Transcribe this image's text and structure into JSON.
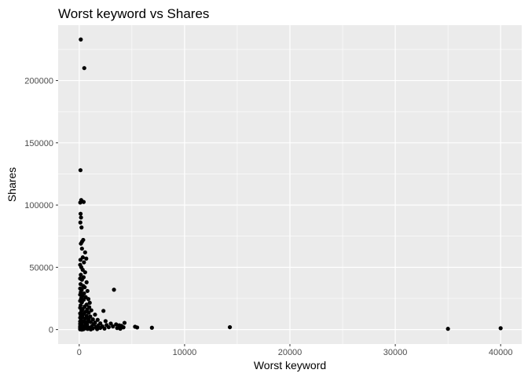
{
  "chart_data": {
    "type": "scatter",
    "title": "Worst keyword vs Shares",
    "xlabel": "Worst keyword",
    "ylabel": "Shares",
    "xlim": [
      -2000,
      42000
    ],
    "ylim": [
      -11600,
      244500
    ],
    "x_ticks": [
      0,
      10000,
      20000,
      30000,
      40000
    ],
    "y_ticks": [
      0,
      50000,
      100000,
      150000,
      200000
    ],
    "x_tick_labels": [
      "0",
      "10000",
      "20000",
      "30000",
      "40000"
    ],
    "y_tick_labels": [
      "0",
      "50000",
      "100000",
      "150000",
      "200000"
    ],
    "grid": true,
    "colors": {
      "panel": "#ebebeb",
      "grid_major": "#ffffff",
      "point": "#000000"
    },
    "points": [
      [
        150,
        233000
      ],
      [
        480,
        210000
      ],
      [
        120,
        128000
      ],
      [
        190,
        104000
      ],
      [
        420,
        102500
      ],
      [
        100,
        102000
      ],
      [
        130,
        93000
      ],
      [
        170,
        90000
      ],
      [
        110,
        86000
      ],
      [
        220,
        82000
      ],
      [
        380,
        72000
      ],
      [
        260,
        70500
      ],
      [
        160,
        69000
      ],
      [
        260,
        65000
      ],
      [
        560,
        62000
      ],
      [
        340,
        58000
      ],
      [
        670,
        57000
      ],
      [
        120,
        56000
      ],
      [
        450,
        54000
      ],
      [
        90,
        52000
      ],
      [
        200,
        50000
      ],
      [
        330,
        48000
      ],
      [
        560,
        46000
      ],
      [
        150,
        44000
      ],
      [
        420,
        42000
      ],
      [
        90,
        41000
      ],
      [
        260,
        40000
      ],
      [
        700,
        38000
      ],
      [
        130,
        36500
      ],
      [
        380,
        35000
      ],
      [
        520,
        34000
      ],
      [
        90,
        33000
      ],
      [
        240,
        32000
      ],
      [
        3300,
        32000
      ],
      [
        780,
        31000
      ],
      [
        150,
        30000
      ],
      [
        460,
        29000
      ],
      [
        90,
        28000
      ],
      [
        300,
        27000
      ],
      [
        620,
        26000
      ],
      [
        180,
        25000
      ],
      [
        870,
        24500
      ],
      [
        430,
        24000
      ],
      [
        90,
        23000
      ],
      [
        260,
        22000
      ],
      [
        1000,
        21500
      ],
      [
        700,
        20000
      ],
      [
        140,
        19500
      ],
      [
        520,
        18500
      ],
      [
        950,
        18000
      ],
      [
        90,
        17500
      ],
      [
        330,
        16500
      ],
      [
        750,
        16000
      ],
      [
        1150,
        15500
      ],
      [
        210,
        15000
      ],
      [
        2300,
        15000
      ],
      [
        560,
        14000
      ],
      [
        900,
        13500
      ],
      [
        90,
        13000
      ],
      [
        400,
        12500
      ],
      [
        1500,
        12000
      ],
      [
        150,
        11500
      ],
      [
        700,
        11000
      ],
      [
        1050,
        10500
      ],
      [
        300,
        10000
      ],
      [
        90,
        9500
      ],
      [
        600,
        9000
      ],
      [
        900,
        8500
      ],
      [
        1300,
        8200
      ],
      [
        1750,
        7800
      ],
      [
        200,
        7500
      ],
      [
        470,
        7000
      ],
      [
        2500,
        6800
      ],
      [
        90,
        6500
      ],
      [
        800,
        6200
      ],
      [
        1100,
        6000
      ],
      [
        320,
        5800
      ],
      [
        1500,
        5600
      ],
      [
        4300,
        5400
      ],
      [
        620,
        5200
      ],
      [
        2000,
        5000
      ],
      [
        3000,
        4800
      ],
      [
        90,
        4600
      ],
      [
        1400,
        4400
      ],
      [
        3500,
        4200
      ],
      [
        250,
        4000
      ],
      [
        760,
        3800
      ],
      [
        2600,
        3600
      ],
      [
        3800,
        3400
      ],
      [
        1800,
        3200
      ],
      [
        4000,
        3000
      ],
      [
        100,
        2900
      ],
      [
        500,
        2800
      ],
      [
        1200,
        2700
      ],
      [
        2200,
        2600
      ],
      [
        3200,
        2500
      ],
      [
        5300,
        2300
      ],
      [
        90,
        2200
      ],
      [
        650,
        2100
      ],
      [
        1600,
        2000
      ],
      [
        2800,
        1900
      ],
      [
        4200,
        1800
      ],
      [
        5500,
        1700
      ],
      [
        6900,
        1500
      ],
      [
        14300,
        1900
      ],
      [
        300,
        1500
      ],
      [
        950,
        1400
      ],
      [
        2000,
        1300
      ],
      [
        3600,
        1200
      ],
      [
        90,
        1100
      ],
      [
        560,
        1000
      ],
      [
        1300,
        900
      ],
      [
        2400,
        800
      ],
      [
        3900,
        700
      ],
      [
        200,
        600
      ],
      [
        800,
        500
      ],
      [
        1700,
        400
      ],
      [
        400,
        300
      ],
      [
        90,
        200
      ],
      [
        1100,
        100
      ],
      [
        250,
        0
      ],
      [
        35000,
        600
      ],
      [
        40000,
        1100
      ]
    ]
  }
}
